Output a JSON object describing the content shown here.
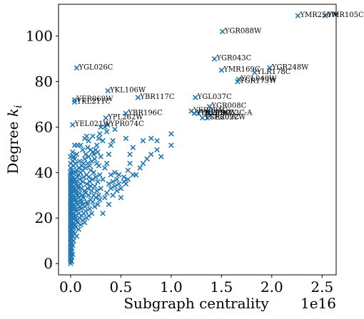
{
  "chart_data": {
    "type": "scatter",
    "xlabel": "Subgraph centrality",
    "ylabel": "Degree k_i",
    "ylabel_main": "Degree ",
    "ylabel_sub": "i",
    "ylabel_var": "k",
    "x_offset_text": "1e16",
    "x_scale": 1e+16,
    "xlim": [
      -0.12,
      2.64
    ],
    "ylim": [
      -5,
      114
    ],
    "x_ticks": [
      0.0,
      0.5,
      1.0,
      1.5,
      2.0,
      2.5
    ],
    "x_tick_labels": [
      "0.0",
      "0.5",
      "1.0",
      "1.5",
      "2.0",
      "2.5"
    ],
    "y_ticks": [
      0,
      20,
      40,
      60,
      80,
      100
    ],
    "y_tick_labels": [
      "0",
      "20",
      "40",
      "60",
      "80",
      "100"
    ],
    "marker": "x",
    "color": "#1f77b4",
    "labeled_points": [
      {
        "label": "YMR250W",
        "x": 2.26,
        "y": 109
      },
      {
        "label": "YMR105C",
        "x": 2.53,
        "y": 109
      },
      {
        "label": "YGR088W",
        "x": 1.51,
        "y": 102
      },
      {
        "label": "YGR043C",
        "x": 1.43,
        "y": 90
      },
      {
        "label": "YGR248W",
        "x": 1.98,
        "y": 86
      },
      {
        "label": "YGL026C",
        "x": 0.06,
        "y": 86
      },
      {
        "label": "YMR169C",
        "x": 1.5,
        "y": 85
      },
      {
        "label": "YLR178C",
        "x": 1.83,
        "y": 84
      },
      {
        "label": "YCL040W",
        "x": 1.67,
        "y": 81
      },
      {
        "label": "YGR173W",
        "x": 1.66,
        "y": 80
      },
      {
        "label": "YKL106W",
        "x": 0.37,
        "y": 76
      },
      {
        "label": "YBR117C",
        "x": 0.67,
        "y": 73
      },
      {
        "label": "YGL037C",
        "x": 1.24,
        "y": 73
      },
      {
        "label": "YER069W",
        "x": 0.04,
        "y": 72
      },
      {
        "label": "YKL211C",
        "x": 0.04,
        "y": 71
      },
      {
        "label": "YGR008C",
        "x": 1.38,
        "y": 69
      },
      {
        "label": "YBR196C",
        "x": 0.55,
        "y": 66
      },
      {
        "label": "YPL262W",
        "x": 0.35,
        "y": 64
      },
      {
        "label": "YEL021W",
        "x": 0.02,
        "y": 61
      },
      {
        "label": "YPR074C",
        "x": 0.37,
        "y": 61
      },
      {
        "label": "YER094C",
        "x": 1.2,
        "y": 67
      },
      {
        "label": "YBL056W",
        "x": 1.27,
        "y": 66
      },
      {
        "label": "YDL215C",
        "x": 1.23,
        "y": 66
      },
      {
        "label": "YFR053C-A",
        "x": 1.37,
        "y": 66
      },
      {
        "label": "YGR209C",
        "x": 1.31,
        "y": 64
      },
      {
        "label": "YER022W",
        "x": 1.36,
        "y": 64
      }
    ],
    "points": [
      [
        0.0,
        0
      ],
      [
        0.0,
        1
      ],
      [
        0.0,
        2
      ],
      [
        0.0,
        3
      ],
      [
        0.0,
        4
      ],
      [
        0.0,
        5
      ],
      [
        0.0,
        6
      ],
      [
        0.0,
        7
      ],
      [
        0.0,
        8
      ],
      [
        0.0,
        9
      ],
      [
        0.0,
        10
      ],
      [
        0.0,
        11
      ],
      [
        0.0,
        12
      ],
      [
        0.0,
        13
      ],
      [
        0.0,
        14
      ],
      [
        0.0,
        15
      ],
      [
        0.0,
        16
      ],
      [
        0.0,
        17
      ],
      [
        0.0,
        18
      ],
      [
        0.0,
        19
      ],
      [
        0.0,
        20
      ],
      [
        0.0,
        21
      ],
      [
        0.0,
        22
      ],
      [
        0.0,
        23
      ],
      [
        0.0,
        24
      ],
      [
        0.0,
        25
      ],
      [
        0.0,
        26
      ],
      [
        0.0,
        27
      ],
      [
        0.0,
        28
      ],
      [
        0.0,
        29
      ],
      [
        0.0,
        30
      ],
      [
        0.0,
        31
      ],
      [
        0.0,
        32
      ],
      [
        0.0,
        33
      ],
      [
        0.0,
        34
      ],
      [
        0.0,
        35
      ],
      [
        0.0,
        36
      ],
      [
        0.0,
        37
      ],
      [
        0.0,
        38
      ],
      [
        0.0,
        39
      ],
      [
        0.0,
        40
      ],
      [
        0.0,
        42
      ],
      [
        0.0,
        44
      ],
      [
        0.0,
        47
      ],
      [
        0.01,
        1
      ],
      [
        0.01,
        3
      ],
      [
        0.01,
        5
      ],
      [
        0.01,
        7
      ],
      [
        0.01,
        9
      ],
      [
        0.01,
        11
      ],
      [
        0.01,
        13
      ],
      [
        0.01,
        15
      ],
      [
        0.01,
        17
      ],
      [
        0.01,
        19
      ],
      [
        0.01,
        21
      ],
      [
        0.01,
        23
      ],
      [
        0.01,
        25
      ],
      [
        0.01,
        27
      ],
      [
        0.01,
        29
      ],
      [
        0.01,
        31
      ],
      [
        0.01,
        33
      ],
      [
        0.01,
        35
      ],
      [
        0.01,
        37
      ],
      [
        0.01,
        41
      ],
      [
        0.02,
        4
      ],
      [
        0.02,
        8
      ],
      [
        0.02,
        12
      ],
      [
        0.02,
        16
      ],
      [
        0.02,
        20
      ],
      [
        0.02,
        24
      ],
      [
        0.02,
        28
      ],
      [
        0.02,
        32
      ],
      [
        0.02,
        36
      ],
      [
        0.02,
        40
      ],
      [
        0.02,
        45
      ],
      [
        0.02,
        49
      ],
      [
        0.03,
        10
      ],
      [
        0.03,
        14
      ],
      [
        0.03,
        18
      ],
      [
        0.03,
        22
      ],
      [
        0.03,
        26
      ],
      [
        0.03,
        30
      ],
      [
        0.03,
        34
      ],
      [
        0.03,
        38
      ],
      [
        0.03,
        43
      ],
      [
        0.03,
        47
      ],
      [
        0.04,
        13
      ],
      [
        0.04,
        17
      ],
      [
        0.04,
        21
      ],
      [
        0.04,
        25
      ],
      [
        0.04,
        29
      ],
      [
        0.04,
        33
      ],
      [
        0.04,
        37
      ],
      [
        0.04,
        46
      ],
      [
        0.04,
        52
      ],
      [
        0.05,
        16
      ],
      [
        0.05,
        20
      ],
      [
        0.05,
        24
      ],
      [
        0.05,
        28
      ],
      [
        0.05,
        32
      ],
      [
        0.05,
        36
      ],
      [
        0.05,
        40
      ],
      [
        0.05,
        44
      ],
      [
        0.06,
        12
      ],
      [
        0.06,
        19
      ],
      [
        0.06,
        23
      ],
      [
        0.06,
        27
      ],
      [
        0.06,
        31
      ],
      [
        0.06,
        35
      ],
      [
        0.06,
        41
      ],
      [
        0.06,
        48
      ],
      [
        0.07,
        18
      ],
      [
        0.07,
        26
      ],
      [
        0.07,
        30
      ],
      [
        0.07,
        34
      ],
      [
        0.07,
        38
      ],
      [
        0.07,
        52
      ],
      [
        0.08,
        15
      ],
      [
        0.08,
        22
      ],
      [
        0.08,
        29
      ],
      [
        0.08,
        33
      ],
      [
        0.08,
        39
      ],
      [
        0.08,
        42
      ],
      [
        0.09,
        20
      ],
      [
        0.09,
        25
      ],
      [
        0.09,
        31
      ],
      [
        0.09,
        37
      ],
      [
        0.09,
        45
      ],
      [
        0.1,
        17
      ],
      [
        0.1,
        24
      ],
      [
        0.1,
        28
      ],
      [
        0.1,
        35
      ],
      [
        0.1,
        40
      ],
      [
        0.1,
        52
      ],
      [
        0.11,
        21
      ],
      [
        0.11,
        27
      ],
      [
        0.11,
        33
      ],
      [
        0.11,
        43
      ],
      [
        0.12,
        19
      ],
      [
        0.12,
        26
      ],
      [
        0.12,
        30
      ],
      [
        0.12,
        36
      ],
      [
        0.12,
        41
      ],
      [
        0.12,
        50
      ],
      [
        0.13,
        22
      ],
      [
        0.13,
        29
      ],
      [
        0.13,
        38
      ],
      [
        0.13,
        44
      ],
      [
        0.14,
        18
      ],
      [
        0.14,
        25
      ],
      [
        0.14,
        32
      ],
      [
        0.14,
        46
      ],
      [
        0.14,
        55
      ],
      [
        0.15,
        23
      ],
      [
        0.15,
        31
      ],
      [
        0.15,
        42
      ],
      [
        0.15,
        48
      ],
      [
        0.16,
        20
      ],
      [
        0.16,
        27
      ],
      [
        0.16,
        35
      ],
      [
        0.16,
        39
      ],
      [
        0.16,
        56
      ],
      [
        0.17,
        26
      ],
      [
        0.17,
        33
      ],
      [
        0.17,
        44
      ],
      [
        0.17,
        51
      ],
      [
        0.18,
        21
      ],
      [
        0.18,
        30
      ],
      [
        0.18,
        38
      ],
      [
        0.18,
        47
      ],
      [
        0.18,
        54
      ],
      [
        0.19,
        24
      ],
      [
        0.19,
        36
      ],
      [
        0.19,
        43
      ],
      [
        0.2,
        28
      ],
      [
        0.2,
        34
      ],
      [
        0.2,
        41
      ],
      [
        0.2,
        50
      ],
      [
        0.21,
        22
      ],
      [
        0.21,
        32
      ],
      [
        0.21,
        45
      ],
      [
        0.22,
        27
      ],
      [
        0.22,
        37
      ],
      [
        0.22,
        49
      ],
      [
        0.22,
        56
      ],
      [
        0.23,
        30
      ],
      [
        0.23,
        40
      ],
      [
        0.23,
        48
      ],
      [
        0.24,
        25
      ],
      [
        0.24,
        34
      ],
      [
        0.24,
        46
      ],
      [
        0.25,
        29
      ],
      [
        0.25,
        38
      ],
      [
        0.25,
        50
      ],
      [
        0.26,
        32
      ],
      [
        0.26,
        44
      ],
      [
        0.26,
        52
      ],
      [
        0.27,
        26
      ],
      [
        0.27,
        36
      ],
      [
        0.27,
        49
      ],
      [
        0.28,
        30
      ],
      [
        0.28,
        43
      ],
      [
        0.28,
        55
      ],
      [
        0.29,
        28
      ],
      [
        0.29,
        39
      ],
      [
        0.29,
        57
      ],
      [
        0.3,
        33
      ],
      [
        0.3,
        47
      ],
      [
        0.3,
        60
      ],
      [
        0.32,
        22
      ],
      [
        0.32,
        37
      ],
      [
        0.32,
        54
      ],
      [
        0.34,
        29
      ],
      [
        0.34,
        42
      ],
      [
        0.34,
        60
      ],
      [
        0.36,
        31
      ],
      [
        0.36,
        44
      ],
      [
        0.36,
        58
      ],
      [
        0.38,
        26
      ],
      [
        0.38,
        35
      ],
      [
        0.38,
        48
      ],
      [
        0.4,
        33
      ],
      [
        0.4,
        39
      ],
      [
        0.4,
        52
      ],
      [
        0.42,
        30
      ],
      [
        0.42,
        36
      ],
      [
        0.42,
        54
      ],
      [
        0.44,
        34
      ],
      [
        0.44,
        40
      ],
      [
        0.44,
        59
      ],
      [
        0.46,
        32
      ],
      [
        0.46,
        37
      ],
      [
        0.48,
        35
      ],
      [
        0.48,
        39
      ],
      [
        0.5,
        29
      ],
      [
        0.5,
        33
      ],
      [
        0.53,
        36
      ],
      [
        0.53,
        38
      ],
      [
        0.55,
        35
      ],
      [
        0.55,
        55
      ],
      [
        0.57,
        37
      ],
      [
        0.57,
        41
      ],
      [
        0.59,
        44
      ],
      [
        0.59,
        48
      ],
      [
        0.62,
        39
      ],
      [
        0.62,
        51
      ],
      [
        0.65,
        39
      ],
      [
        0.69,
        42
      ],
      [
        0.72,
        44
      ],
      [
        0.72,
        54
      ],
      [
        0.76,
        46
      ],
      [
        0.8,
        48
      ],
      [
        0.8,
        55
      ],
      [
        0.86,
        50
      ],
      [
        0.86,
        54
      ],
      [
        0.9,
        47
      ],
      [
        1.0,
        52
      ],
      [
        1.0,
        57
      ]
    ]
  }
}
